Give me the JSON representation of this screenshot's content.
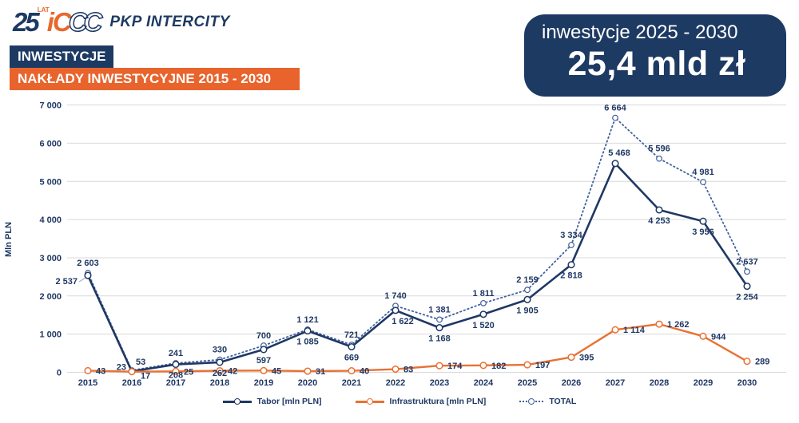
{
  "logo": {
    "years": "25",
    "lat": "LAT",
    "ic": "iC",
    "ic_outline": "CC",
    "brand": "PKP INTERCITY"
  },
  "header": {
    "section_label": "INWESTYCJE",
    "title": "NAKŁADY INWESTYCYJNE 2015 - 2030"
  },
  "badge": {
    "line1": "inwestycje 2025 - 2030",
    "line2": "25,4 mld zł"
  },
  "colors": {
    "navy": "#1d3a63",
    "orange_banner": "#e8642c",
    "tabor_line": "#1f3864",
    "infrastruktura_line": "#e97132",
    "total_line": "#3f5f9e",
    "gridline": "#d9d9d9",
    "label_text": "#1f3864",
    "leader_line": "#9aa7bd"
  },
  "chart_data": {
    "type": "line",
    "title": "",
    "xlabel": "",
    "ylabel": "Mln PLN",
    "ylim": [
      0,
      7000
    ],
    "ytick_step": 1000,
    "grid": true,
    "legend_position": "bottom",
    "categories": [
      "2015",
      "2016",
      "2017",
      "2018",
      "2019",
      "2020",
      "2021",
      "2022",
      "2023",
      "2024",
      "2025",
      "2026",
      "2027",
      "2028",
      "2029",
      "2030"
    ],
    "ytick_labels": [
      "0",
      "1 000",
      "2 000",
      "3 000",
      "4 000",
      "5 000",
      "6 000",
      "7 000"
    ],
    "series": [
      {
        "name": "Tabor [mln PLN]",
        "key": "tabor",
        "style": "solid",
        "values": [
          2537,
          23,
          208,
          262,
          597,
          1085,
          669,
          1622,
          1168,
          1520,
          1905,
          2818,
          5468,
          4253,
          3956,
          2254
        ]
      },
      {
        "name": "Infrastruktura [mln PLN]",
        "key": "infrastruktura",
        "style": "solid",
        "values": [
          43,
          17,
          25,
          42,
          45,
          31,
          40,
          83,
          174,
          182,
          197,
          395,
          1114,
          1262,
          944,
          289
        ]
      },
      {
        "name": "TOTAL",
        "key": "total",
        "style": "dotted",
        "values": [
          2603,
          53,
          241,
          330,
          700,
          1121,
          721,
          1740,
          1381,
          1811,
          2159,
          3334,
          6664,
          5596,
          4981,
          2637
        ]
      }
    ]
  }
}
